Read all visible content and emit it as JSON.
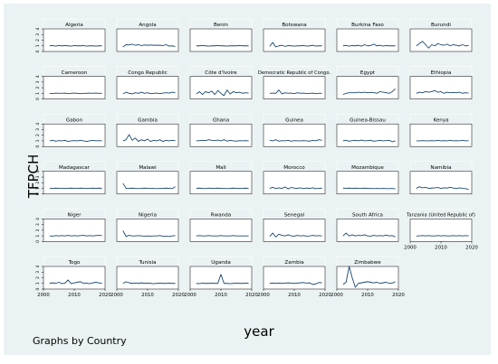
{
  "figure": {
    "ylabel": "TFPCH",
    "xlabel": "year",
    "note": "Graphs by Country",
    "colors": {
      "line": "#1a476f",
      "panel_bg": "#ffffff",
      "strip_bg": "#eaf2f3",
      "outer_bg": "#eaf2f3",
      "text": "#000000"
    }
  },
  "chart_data": {
    "type": "line",
    "panel_layout": "small multiples, 6 columns",
    "x": [
      2002,
      2003,
      2004,
      2005,
      2006,
      2007,
      2008,
      2009,
      2010,
      2011,
      2012,
      2013,
      2014,
      2015,
      2016,
      2017,
      2018,
      2019
    ],
    "xlabel": "year",
    "ylabel": "TFPCH",
    "xlim": [
      2000,
      2020
    ],
    "ylim": [
      0,
      4
    ],
    "xticks": [
      "2000",
      "2010",
      "2020"
    ],
    "yticks": [
      "0",
      "1",
      "2",
      "3",
      "4"
    ],
    "legend": "none",
    "grid": false,
    "note": "Graphs by Country",
    "series": [
      {
        "name": "Algeria",
        "values": [
          1.0,
          1.05,
          0.95,
          1.05,
          1.0,
          1.05,
          1.0,
          0.95,
          1.05,
          1.0,
          1.0,
          1.05,
          0.95,
          1.0,
          1.0,
          0.95,
          1.0,
          1.0
        ]
      },
      {
        "name": "Angola",
        "values": [
          0.8,
          1.2,
          1.15,
          1.3,
          1.1,
          1.2,
          1.05,
          1.15,
          1.1,
          1.15,
          1.1,
          1.1,
          1.1,
          1.05,
          1.2,
          0.95,
          1.0,
          0.9
        ]
      },
      {
        "name": "Benin",
        "values": [
          1.0,
          1.0,
          1.05,
          1.0,
          0.95,
          1.0,
          1.0,
          1.05,
          1.0,
          1.0,
          0.95,
          1.0,
          1.0,
          1.0,
          1.05,
          1.0,
          1.0,
          1.0
        ]
      },
      {
        "name": "Botswana",
        "values": [
          0.9,
          1.6,
          0.8,
          1.0,
          1.1,
          0.9,
          1.05,
          1.0,
          0.95,
          1.0,
          1.0,
          1.05,
          0.95,
          1.0,
          1.1,
          0.95,
          1.0,
          1.0
        ]
      },
      {
        "name": "Burkina Faso",
        "values": [
          1.0,
          1.05,
          0.95,
          1.05,
          1.0,
          1.1,
          0.95,
          1.2,
          1.0,
          1.05,
          1.3,
          1.0,
          1.1,
          0.95,
          1.05,
          1.0,
          1.0,
          1.0
        ]
      },
      {
        "name": "Burundi",
        "values": [
          1.0,
          1.4,
          1.8,
          1.2,
          0.6,
          1.2,
          1.0,
          1.4,
          1.2,
          1.1,
          1.3,
          1.0,
          1.2,
          1.1,
          1.0,
          1.2,
          1.0,
          1.05
        ]
      },
      {
        "name": "Cameroon",
        "values": [
          1.0,
          0.95,
          1.05,
          1.0,
          1.0,
          1.05,
          0.95,
          1.0,
          1.05,
          1.0,
          0.95,
          1.0,
          1.0,
          1.05,
          1.0,
          1.05,
          1.0,
          1.0
        ]
      },
      {
        "name": "Congo Republic",
        "values": [
          0.9,
          1.2,
          1.0,
          0.9,
          1.1,
          1.0,
          1.2,
          1.0,
          1.1,
          0.95,
          1.0,
          1.05,
          0.95,
          1.05,
          1.1,
          1.05,
          1.2,
          1.1
        ]
      },
      {
        "name": "Côte d'Ivoire",
        "values": [
          0.9,
          1.3,
          0.8,
          1.3,
          1.1,
          1.4,
          0.8,
          1.5,
          1.0,
          0.6,
          1.6,
          0.9,
          1.3,
          1.1,
          1.2,
          1.0,
          1.1,
          1.05
        ]
      },
      {
        "name": "Democratic Republic of Congo.",
        "values": [
          1.0,
          1.05,
          1.0,
          1.6,
          0.9,
          1.1,
          1.0,
          1.05,
          0.95,
          1.1,
          1.0,
          1.05,
          0.95,
          1.0,
          1.05,
          0.95,
          1.0,
          1.0
        ]
      },
      {
        "name": "Egypt",
        "values": [
          0.8,
          1.0,
          1.1,
          1.1,
          1.1,
          1.2,
          1.1,
          1.2,
          1.1,
          1.15,
          1.15,
          1.0,
          1.3,
          1.2,
          1.1,
          1.0,
          1.3,
          1.8
        ]
      },
      {
        "name": "Ethiopia",
        "values": [
          1.0,
          1.2,
          1.1,
          1.3,
          1.2,
          1.3,
          1.5,
          1.2,
          1.3,
          1.0,
          1.2,
          1.1,
          1.15,
          1.1,
          1.2,
          1.0,
          1.1,
          1.05
        ]
      },
      {
        "name": "Gabon",
        "values": [
          1.0,
          1.1,
          0.95,
          1.05,
          1.0,
          1.1,
          0.9,
          1.0,
          1.05,
          1.0,
          1.1,
          1.0,
          0.9,
          1.0,
          1.1,
          1.0,
          1.05,
          1.0
        ]
      },
      {
        "name": "Gambia",
        "values": [
          1.0,
          1.2,
          2.1,
          1.1,
          1.5,
          0.9,
          1.2,
          1.0,
          1.3,
          0.9,
          1.1,
          1.0,
          1.2,
          0.9,
          1.1,
          1.0,
          1.1,
          1.05
        ]
      },
      {
        "name": "Ghana",
        "values": [
          1.0,
          1.05,
          1.1,
          1.05,
          1.2,
          1.1,
          1.05,
          1.15,
          1.0,
          1.2,
          0.95,
          1.1,
          1.0,
          0.95,
          1.05,
          1.0,
          1.05,
          1.0
        ]
      },
      {
        "name": "Guinea",
        "values": [
          1.1,
          1.0,
          1.2,
          0.95,
          1.05,
          1.0,
          1.1,
          0.95,
          1.05,
          1.0,
          1.0,
          1.05,
          1.0,
          0.95,
          1.1,
          1.0,
          1.2,
          1.1
        ]
      },
      {
        "name": "Guinea-Bissau",
        "values": [
          1.0,
          1.1,
          0.95,
          1.05,
          1.1,
          1.0,
          1.15,
          1.0,
          1.05,
          1.1,
          0.95,
          1.0,
          1.1,
          1.0,
          1.05,
          1.1,
          0.85,
          1.0
        ]
      },
      {
        "name": "Kenya",
        "values": [
          1.0,
          1.0,
          1.05,
          1.0,
          1.0,
          1.05,
          1.0,
          1.1,
          1.0,
          1.05,
          1.0,
          1.1,
          1.0,
          1.05,
          1.0,
          1.1,
          1.0,
          1.05
        ]
      },
      {
        "name": "Madagascar",
        "values": [
          1.0,
          1.0,
          1.05,
          1.0,
          1.0,
          1.0,
          1.0,
          1.05,
          1.0,
          1.0,
          1.05,
          1.0,
          1.0,
          1.0,
          1.05,
          1.0,
          1.05,
          1.0
        ]
      },
      {
        "name": "Malawi",
        "values": [
          1.9,
          1.0,
          1.0,
          1.05,
          1.0,
          0.95,
          1.0,
          1.05,
          1.0,
          1.0,
          1.0,
          0.95,
          1.0,
          1.0,
          1.05,
          1.0,
          0.95,
          1.3
        ]
      },
      {
        "name": "Mali",
        "values": [
          1.0,
          1.05,
          1.0,
          0.95,
          1.05,
          1.0,
          1.0,
          1.05,
          1.0,
          1.0,
          0.95,
          1.0,
          1.05,
          1.0,
          1.0,
          1.0,
          1.05,
          1.0
        ]
      },
      {
        "name": "Morocco",
        "values": [
          1.0,
          1.2,
          0.95,
          1.1,
          1.0,
          1.25,
          0.9,
          1.15,
          1.05,
          1.0,
          1.1,
          0.95,
          1.05,
          1.0,
          1.1,
          0.95,
          1.0,
          1.05
        ]
      },
      {
        "name": "Mozambique",
        "values": [
          1.05,
          1.0,
          1.05,
          1.0,
          1.05,
          1.0,
          1.0,
          1.05,
          1.0,
          1.0,
          0.95,
          1.0,
          0.95,
          1.0,
          0.95,
          0.95,
          1.0,
          0.9
        ]
      },
      {
        "name": "Namibia",
        "values": [
          1.0,
          1.3,
          1.1,
          1.2,
          1.0,
          1.05,
          1.1,
          1.15,
          1.0,
          1.1,
          1.05,
          1.2,
          1.05,
          0.95,
          1.1,
          1.0,
          0.95,
          0.8
        ]
      },
      {
        "name": "Niger",
        "values": [
          1.0,
          0.95,
          1.05,
          1.0,
          1.05,
          1.0,
          1.1,
          1.0,
          1.05,
          1.0,
          1.05,
          1.1,
          1.0,
          1.05,
          1.0,
          1.05,
          1.1,
          1.05
        ]
      },
      {
        "name": "Nigeria",
        "values": [
          1.9,
          0.9,
          1.1,
          1.0,
          1.0,
          1.05,
          1.0,
          0.95,
          1.0,
          0.95,
          1.0,
          1.0,
          1.05,
          0.95,
          0.95,
          0.9,
          1.0,
          1.05
        ]
      },
      {
        "name": "Rwanda",
        "values": [
          1.0,
          1.05,
          1.0,
          1.0,
          1.05,
          1.0,
          1.0,
          1.0,
          1.05,
          1.0,
          1.0,
          1.0,
          1.05,
          1.0,
          1.0,
          1.0,
          1.0,
          1.0
        ]
      },
      {
        "name": "Senegal",
        "values": [
          0.9,
          1.5,
          0.8,
          1.3,
          1.1,
          1.0,
          1.2,
          1.0,
          0.95,
          1.1,
          1.0,
          1.05,
          0.95,
          1.0,
          1.1,
          1.0,
          1.05,
          1.0
        ]
      },
      {
        "name": "South Africa",
        "values": [
          1.0,
          1.5,
          1.0,
          1.2,
          1.0,
          1.1,
          1.05,
          1.2,
          1.0,
          0.95,
          1.1,
          1.0,
          1.05,
          1.0,
          1.15,
          1.0,
          1.05,
          0.8
        ]
      },
      {
        "name": "Tanzania (United Republic of)",
        "values": [
          1.0,
          1.0,
          1.05,
          1.0,
          1.05,
          1.0,
          1.0,
          1.05,
          1.0,
          1.05,
          1.0,
          1.0,
          1.05,
          1.0,
          1.05,
          1.0,
          1.05,
          1.0
        ]
      },
      {
        "name": "Togo",
        "values": [
          1.0,
          1.1,
          1.0,
          1.2,
          0.95,
          1.05,
          1.6,
          0.95,
          1.1,
          1.2,
          1.3,
          1.0,
          1.05,
          0.95,
          1.1,
          1.2,
          1.1,
          1.0
        ]
      },
      {
        "name": "Tunisia",
        "values": [
          1.0,
          1.3,
          1.1,
          1.0,
          1.05,
          1.0,
          1.1,
          1.0,
          1.05,
          1.0,
          0.95,
          1.0,
          1.05,
          1.0,
          1.0,
          1.05,
          1.0,
          1.0
        ]
      },
      {
        "name": "Uganda",
        "values": [
          1.0,
          0.95,
          1.05,
          1.0,
          1.0,
          1.05,
          1.0,
          1.0,
          2.6,
          1.0,
          1.0,
          0.95,
          1.0,
          1.05,
          1.0,
          1.0,
          1.05,
          1.0
        ]
      },
      {
        "name": "Zambia",
        "values": [
          1.0,
          1.05,
          1.0,
          1.05,
          1.0,
          1.05,
          1.1,
          1.05,
          1.0,
          1.05,
          1.1,
          1.15,
          1.05,
          1.1,
          0.8,
          0.9,
          1.15,
          1.1
        ]
      },
      {
        "name": "Zimbabwe",
        "values": [
          0.8,
          1.2,
          4.0,
          2.0,
          0.3,
          1.0,
          1.1,
          1.2,
          1.3,
          1.2,
          1.1,
          1.2,
          1.0,
          1.1,
          1.2,
          1.0,
          1.05,
          1.3
        ]
      }
    ]
  }
}
